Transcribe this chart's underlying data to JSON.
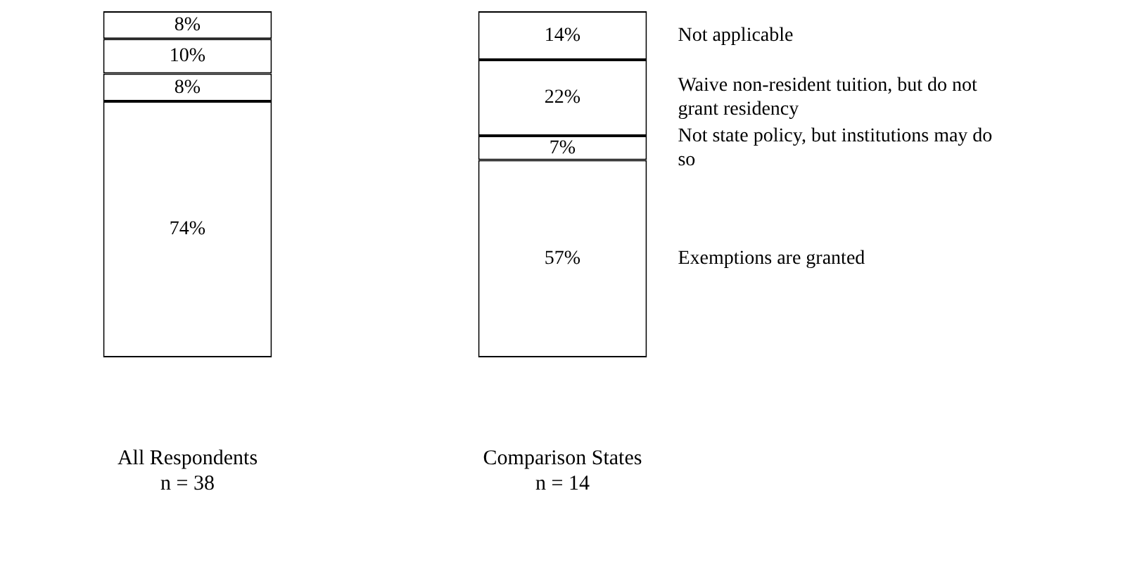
{
  "chart_data": {
    "type": "bar",
    "stacked": true,
    "categories": [
      "All Respondents\nn = 38",
      "Comparison States\nn = 14"
    ],
    "series": [
      {
        "name": "Exemptions are granted",
        "color": "#ffffff",
        "values": [
          74,
          57
        ],
        "value_labels": [
          "74%",
          "57%"
        ]
      },
      {
        "name": "Not state policy,  but institutions may do so",
        "color": "#ffffff",
        "values": [
          8,
          7
        ],
        "value_labels": [
          "8%",
          "7%"
        ]
      },
      {
        "name": "Waive non-resident tuition, but do not grant residency",
        "color": "#ffffff",
        "values": [
          10,
          22
        ],
        "value_labels": [
          "10%",
          "22%"
        ]
      },
      {
        "name": "Not applicable",
        "color": "#ffffff",
        "values": [
          8,
          14
        ],
        "value_labels": [
          "8%",
          "14%"
        ]
      }
    ]
  }
}
